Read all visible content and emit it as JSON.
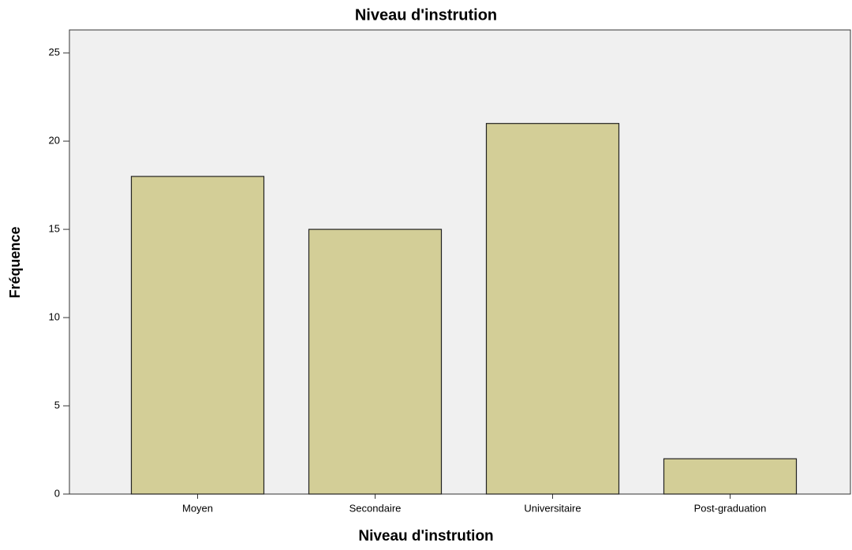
{
  "chart_data": {
    "type": "bar",
    "title": "Niveau d'instrution",
    "x_label": "Niveau d'instrution",
    "y_label": "Fréquence",
    "categories": [
      "Moyen",
      "Secondaire",
      "Universitaire",
      "Post-graduation"
    ],
    "values": [
      18,
      15,
      21,
      2
    ],
    "color": "#d3ce97",
    "ylim": [
      0,
      26.3
    ],
    "yticks": [
      0,
      5,
      10,
      15,
      20,
      25
    ],
    "grid": false
  }
}
